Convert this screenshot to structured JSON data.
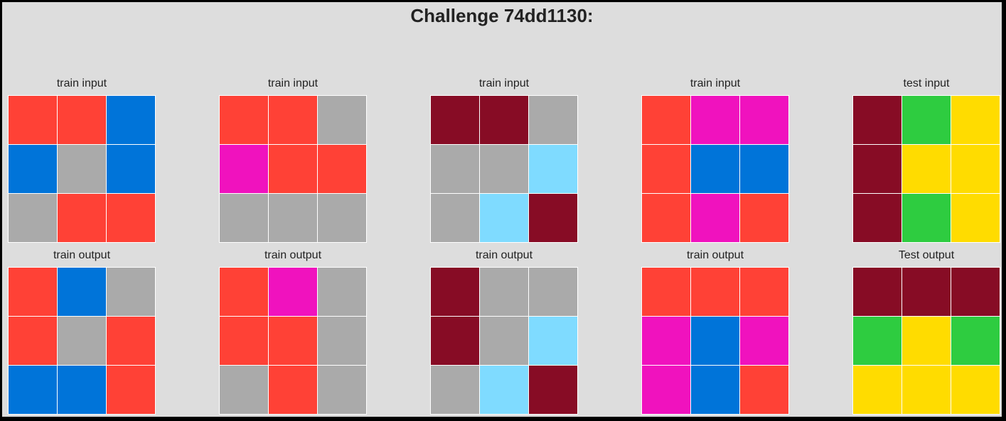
{
  "title": "Challenge 74dd1130:",
  "palette": {
    "0": "#000000",
    "1": "#0074d9",
    "2": "#ff4136",
    "3": "#2ecc40",
    "4": "#ffdc00",
    "5": "#aaaaaa",
    "6": "#f012be",
    "7": "#ff851b",
    "8": "#7fdbff",
    "9": "#870c25"
  },
  "rows": [
    {
      "panels": [
        {
          "label": "train input",
          "grid": [
            [
              2,
              2,
              1
            ],
            [
              1,
              5,
              1
            ],
            [
              5,
              2,
              2
            ]
          ]
        },
        {
          "label": "train input",
          "grid": [
            [
              2,
              2,
              5
            ],
            [
              6,
              2,
              2
            ],
            [
              5,
              5,
              5
            ]
          ]
        },
        {
          "label": "train input",
          "grid": [
            [
              9,
              9,
              5
            ],
            [
              5,
              5,
              8
            ],
            [
              5,
              8,
              9
            ]
          ]
        },
        {
          "label": "train input",
          "grid": [
            [
              2,
              6,
              6
            ],
            [
              2,
              1,
              1
            ],
            [
              2,
              6,
              2
            ]
          ]
        },
        {
          "label": "test input",
          "grid": [
            [
              9,
              3,
              4
            ],
            [
              9,
              4,
              4
            ],
            [
              9,
              3,
              4
            ]
          ]
        }
      ]
    },
    {
      "panels": [
        {
          "label": "train output",
          "grid": [
            [
              2,
              1,
              5
            ],
            [
              2,
              5,
              2
            ],
            [
              1,
              1,
              2
            ]
          ]
        },
        {
          "label": "train output",
          "grid": [
            [
              2,
              6,
              5
            ],
            [
              2,
              2,
              5
            ],
            [
              5,
              2,
              5
            ]
          ]
        },
        {
          "label": "train output",
          "grid": [
            [
              9,
              5,
              5
            ],
            [
              9,
              5,
              8
            ],
            [
              5,
              8,
              9
            ]
          ]
        },
        {
          "label": "train output",
          "grid": [
            [
              2,
              2,
              2
            ],
            [
              6,
              1,
              6
            ],
            [
              6,
              1,
              2
            ]
          ]
        },
        {
          "label": "Test output",
          "grid": [
            [
              9,
              9,
              9
            ],
            [
              3,
              4,
              3
            ],
            [
              4,
              4,
              4
            ]
          ]
        }
      ]
    }
  ]
}
